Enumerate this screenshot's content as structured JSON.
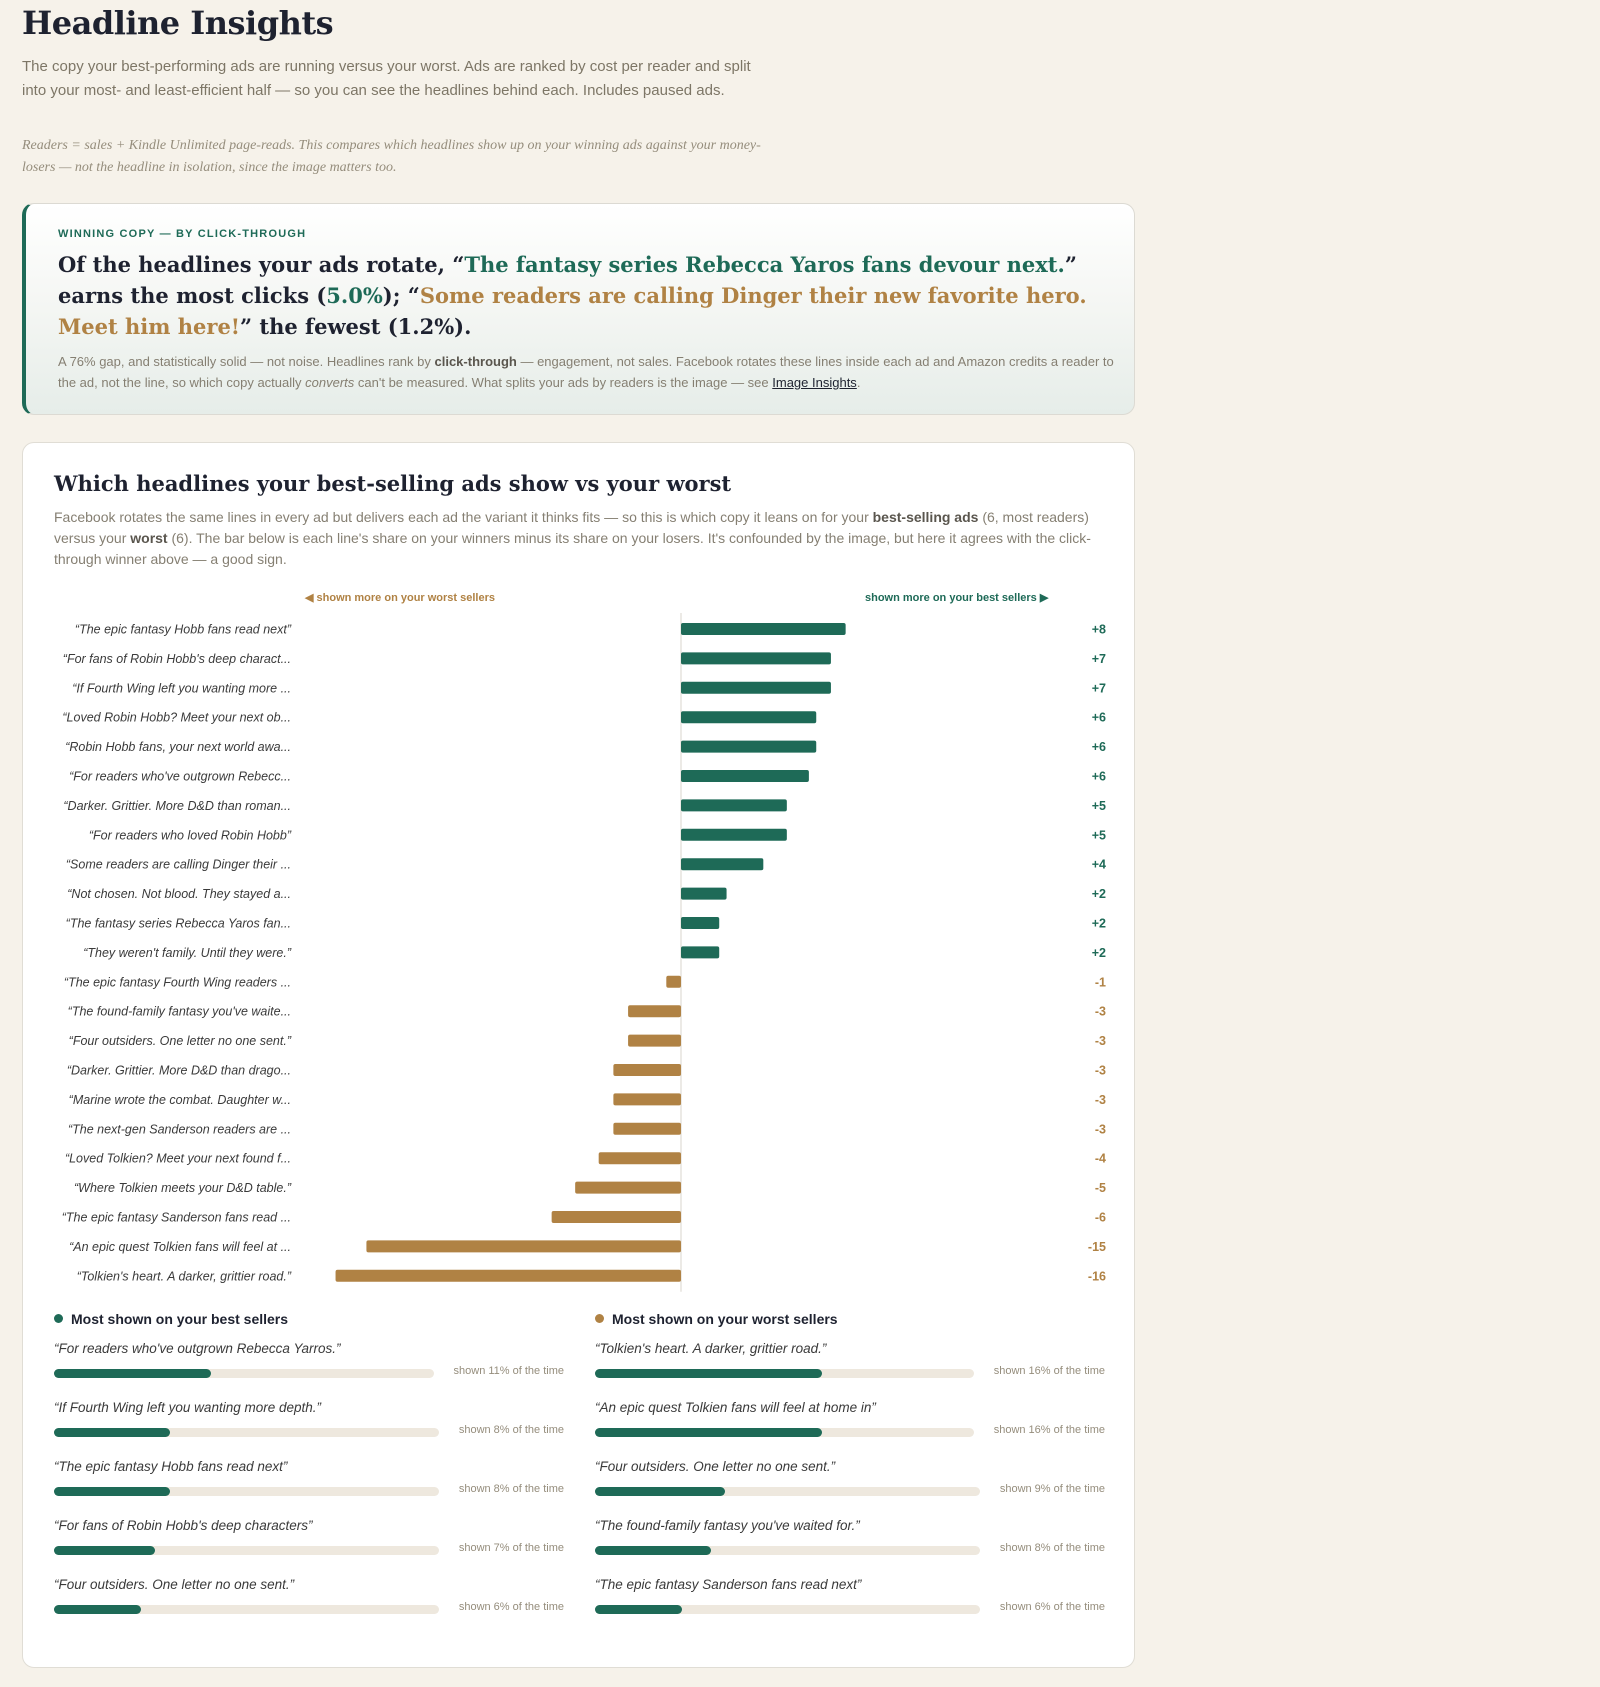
{
  "page": {
    "title": "Headline Insights",
    "intro": "The copy your best-performing ads are running versus your worst. Ads are ranked by cost per reader and split into your most- and least-efficient half — so you can see the headlines behind each. Includes paused ads.",
    "note": "Readers = sales + Kindle Unlimited page-reads. This compares which headlines show up on your winning ads against your money-losers — not the headline in isolation, since the image matters too."
  },
  "winner": {
    "eyebrow": "WINNING COPY — BY CLICK-THROUGH",
    "p1": "Of the headlines your ads rotate, “",
    "best_headline": "The fantasy series Rebecca Yaros fans devour next.",
    "p2": "” earns the most clicks (",
    "best_ctr": "5.0%",
    "p3": "); “",
    "worst_headline": "Some readers are calling Dinger their new favorite hero. Meet him here!",
    "p4": "” the fewest (1.2%).",
    "sub1": "A 76% gap, and statistically solid — not noise. Headlines rank by ",
    "sub_bold": "click-through",
    "sub2": " — engagement, not sales. Facebook rotates these lines inside each ad and Amazon credits a reader to the ad, not the line, so which copy actually ",
    "sub_italic": "converts",
    "sub3": " can't be measured. What splits your ads by readers is the image — see ",
    "sub_link": "Image Insights",
    "sub4": "."
  },
  "card": {
    "title": "Which headlines your best-selling ads show vs your worst",
    "d1": "Facebook rotates the same lines in every ad but delivers each ad the variant it thinks fits — so this is which copy it leans on for your ",
    "d_bold1": "best-selling ads",
    "d2": " (6, most readers) versus your ",
    "d_bold2": "worst",
    "d3": " (6). The bar below is each line's share on your winners minus its share on your losers. It's confounded by the image, but here it agrees with the click-through winner above — a good sign.",
    "legend_left": "◀ shown more on your worst sellers",
    "legend_right": "shown more on your best sellers ▶"
  },
  "chart_data": {
    "type": "bar",
    "orientation": "horizontal",
    "colors": {
      "positive": "#1e6a57",
      "negative": "#b08244"
    },
    "categories": [
      "“The epic fantasy Hobb fans read next”",
      "“For fans of Robin Hobb's deep charact...",
      "“If Fourth Wing left you wanting more ...",
      "“Loved Robin Hobb? Meet your next ob...",
      "“Robin Hobb fans, your next world awa...",
      "“For readers who've outgrown Rebecc...",
      "“Darker. Grittier. More D&D than roman...",
      "“For readers who loved Robin Hobb”",
      "“Some readers are calling Dinger their ...",
      "“Not chosen. Not blood. They stayed a...",
      "“The fantasy series Rebecca Yaros fan...",
      "“They weren't family. Until they were.”",
      "“The epic fantasy Fourth Wing readers ...",
      "“The found-family fantasy you've waite...",
      "“Four outsiders. One letter no one sent.”",
      "“Darker. Grittier. More D&D than drago...",
      "“Marine wrote the combat. Daughter w...",
      "“The next-gen Sanderson readers are ...",
      "“Loved Tolkien? Meet your next found f...",
      "“Where Tolkien meets your D&D table.”",
      "“The epic fantasy Sanderson fans read ...",
      "“An epic quest Tolkien fans will feel at ...",
      "“Tolkien's heart. A darker, grittier road.”"
    ],
    "values": [
      11.2,
      10.2,
      10.2,
      9.2,
      9.2,
      8.7,
      7.2,
      7.2,
      5.6,
      3.1,
      2.6,
      2.6,
      -1.0,
      -3.6,
      -3.6,
      -4.6,
      -4.6,
      -4.6,
      -5.6,
      -7.2,
      -8.8,
      -21.4,
      -23.5
    ],
    "labels": [
      "+8",
      "+7",
      "+7",
      "+6",
      "+6",
      "+6",
      "+5",
      "+5",
      "+4",
      "+2",
      "+2",
      "+2",
      "-1",
      "-3",
      "-3",
      "-3",
      "-3",
      "-3",
      "-4",
      "-5",
      "-6",
      "-15",
      "-16"
    ]
  },
  "best_list": {
    "title": "Most shown on your best sellers",
    "items": [
      {
        "text": "“For readers who've outgrown Rebecca Yarros.”",
        "share": "shown 11% of the time",
        "value": 0.11
      },
      {
        "text": "“If Fourth Wing left you wanting more depth.”",
        "share": "shown 8% of the time",
        "value": 0.08
      },
      {
        "text": "“The epic fantasy Hobb fans read next”",
        "share": "shown 8% of the time",
        "value": 0.08
      },
      {
        "text": "“For fans of Robin Hobb's deep characters”",
        "share": "shown 7% of the time",
        "value": 0.07
      },
      {
        "text": "“Four outsiders. One letter no one sent.”",
        "share": "shown 6% of the time",
        "value": 0.06
      }
    ]
  },
  "worst_list": {
    "title": "Most shown on your worst sellers",
    "items": [
      {
        "text": "“Tolkien's heart. A darker, grittier road.”",
        "share": "shown 16% of the time",
        "value": 0.16
      },
      {
        "text": "“An epic quest Tolkien fans will feel at home in”",
        "share": "shown 16% of the time",
        "value": 0.16
      },
      {
        "text": "“Four outsiders. One letter no one sent.”",
        "share": "shown 9% of the time",
        "value": 0.09
      },
      {
        "text": "“The found-family fantasy you've waited for.”",
        "share": "shown 8% of the time",
        "value": 0.08
      },
      {
        "text": "“The epic fantasy Sanderson fans read next”",
        "share": "shown 6% of the time",
        "value": 0.06
      }
    ]
  }
}
